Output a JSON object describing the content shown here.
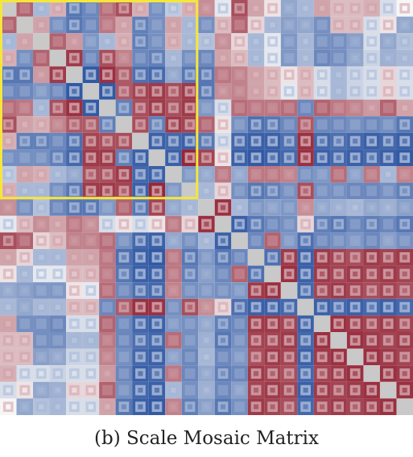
{
  "caption": "(b) Scale Mosaic Matrix",
  "chart_data": {
    "type": "heatmap",
    "title": "",
    "xlabel": "",
    "ylabel": "",
    "grid": false,
    "legend": "none",
    "colorscale": {
      "negative": "#1f4a9c",
      "neutral": "#f6f6f6",
      "positive": "#8c1326",
      "diagonal": "#c9c9c9",
      "range": [
        -1,
        1
      ]
    },
    "highlight_color": "#f5e63c",
    "highlight_blocks": [
      {
        "rows": [
          0,
          11
        ],
        "cols": [
          0,
          11
        ]
      }
    ],
    "rows": [
      [
        1.0,
        0.6,
        -0.3,
        0.25,
        -0.7,
        -0.6,
        0.55,
        0.7,
        0.25,
        -0.55,
        -0.2,
        0.25,
        0.4,
        -0.05,
        0.7,
        0.3,
        0.05,
        -0.4,
        -0.3,
        0.3,
        0.2,
        0.2,
        0.25,
        -0.1,
        0.0
      ],
      [
        0.6,
        1.0,
        0.3,
        -0.55,
        -0.7,
        -0.6,
        0.5,
        0.3,
        -0.65,
        -0.55,
        0.3,
        -0.3,
        -0.55,
        0.2,
        0.6,
        0.1,
        -0.3,
        -0.45,
        -0.4,
        -0.55,
        0.2,
        0.2,
        -0.1,
        0.05,
        -0.4
      ],
      [
        -0.3,
        0.3,
        1.0,
        0.6,
        0.35,
        -0.5,
        -0.3,
        0.25,
        -0.65,
        -0.55,
        0.25,
        -0.3,
        -0.25,
        0.4,
        0.1,
        -0.3,
        -0.05,
        -0.5,
        -0.3,
        -0.55,
        -0.55,
        -0.45,
        -0.1,
        -0.4,
        -0.25
      ],
      [
        0.25,
        -0.55,
        0.6,
        1.0,
        0.8,
        -0.6,
        0.7,
        0.45,
        -0.6,
        -0.65,
        -0.3,
        -0.55,
        -0.6,
        0.3,
        0.2,
        -0.3,
        -0.05,
        -0.5,
        -0.3,
        -0.6,
        -0.55,
        -0.4,
        -0.15,
        -0.35,
        -0.3
      ],
      [
        -0.7,
        -0.7,
        0.35,
        0.8,
        1.0,
        -0.9,
        0.85,
        0.65,
        -0.75,
        -0.8,
        -0.4,
        -0.7,
        -0.7,
        0.5,
        0.45,
        0.3,
        0.2,
        0.05,
        0.2,
        -0.1,
        -0.3,
        -0.15,
        -0.1,
        0.1,
        -0.1
      ],
      [
        -0.6,
        -0.6,
        -0.5,
        -0.6,
        -0.9,
        1.0,
        -0.9,
        0.65,
        0.75,
        0.8,
        0.7,
        0.8,
        -0.7,
        0.4,
        0.45,
        0.3,
        0.2,
        -0.05,
        0.2,
        -0.1,
        -0.3,
        -0.15,
        -0.1,
        0.1,
        -0.1
      ],
      [
        0.55,
        0.5,
        -0.3,
        0.7,
        0.85,
        -0.9,
        1.0,
        -0.65,
        0.7,
        0.8,
        0.7,
        0.8,
        -0.5,
        -0.1,
        0.55,
        0.5,
        0.5,
        0.55,
        -0.6,
        0.6,
        0.5,
        0.45,
        0.35,
        0.6,
        0.3
      ],
      [
        0.7,
        0.3,
        0.25,
        0.45,
        0.65,
        0.65,
        -0.65,
        1.0,
        0.7,
        -0.65,
        0.8,
        0.75,
        0.6,
        0.05,
        -0.55,
        -0.75,
        -0.7,
        -0.6,
        0.65,
        -0.6,
        -0.6,
        -0.55,
        -0.6,
        -0.55,
        -0.7
      ],
      [
        0.25,
        -0.65,
        -0.65,
        -0.6,
        -0.75,
        0.75,
        0.7,
        0.7,
        1.0,
        -0.85,
        -0.8,
        -0.85,
        -0.7,
        -0.1,
        -0.8,
        -0.85,
        -0.85,
        -0.75,
        0.85,
        -0.8,
        -0.75,
        -0.8,
        -0.85,
        -0.8,
        -0.85
      ],
      [
        -0.55,
        -0.55,
        -0.55,
        -0.65,
        -0.8,
        0.8,
        0.8,
        -0.65,
        -0.85,
        1.0,
        -0.85,
        0.9,
        0.75,
        0.05,
        -0.85,
        -0.9,
        -0.85,
        -0.8,
        0.85,
        -0.85,
        -0.8,
        -0.85,
        -0.8,
        -0.85,
        -0.9
      ],
      [
        -0.2,
        0.3,
        0.25,
        -0.3,
        -0.4,
        0.7,
        0.7,
        0.8,
        -0.8,
        -0.85,
        1.0,
        -0.5,
        -0.4,
        0.5,
        -0.4,
        0.5,
        0.5,
        0.45,
        -0.55,
        -0.5,
        0.55,
        -0.45,
        0.5,
        -0.3,
        0.45
      ],
      [
        0.25,
        -0.3,
        -0.3,
        -0.55,
        -0.7,
        0.8,
        0.8,
        0.75,
        -0.85,
        0.9,
        -0.5,
        1.0,
        -0.3,
        0.1,
        -0.55,
        -0.7,
        -0.65,
        -0.55,
        0.7,
        -0.55,
        -0.55,
        -0.6,
        -0.6,
        -0.55,
        -0.65
      ],
      [
        0.4,
        -0.55,
        -0.25,
        -0.6,
        -0.7,
        -0.7,
        -0.5,
        0.6,
        -0.7,
        0.75,
        -0.4,
        -0.3,
        1.0,
        0.85,
        -0.3,
        -0.5,
        -0.45,
        -0.5,
        0.4,
        -0.4,
        -0.35,
        -0.3,
        -0.4,
        -0.35,
        -0.45
      ],
      [
        -0.05,
        0.2,
        0.4,
        0.3,
        0.5,
        0.4,
        -0.1,
        0.05,
        -0.1,
        0.05,
        0.5,
        0.1,
        0.85,
        1.0,
        -0.85,
        -0.7,
        -0.6,
        -0.55,
        0.1,
        -0.65,
        -0.7,
        -0.6,
        -0.65,
        -0.6,
        -0.7
      ],
      [
        0.7,
        0.6,
        0.1,
        0.2,
        0.45,
        0.45,
        0.55,
        -0.55,
        -0.8,
        -0.85,
        -0.4,
        -0.55,
        -0.3,
        -0.85,
        1.0,
        -0.6,
        0.6,
        -0.5,
        -0.75,
        -0.6,
        -0.55,
        -0.5,
        -0.6,
        -0.45,
        -0.55
      ],
      [
        0.3,
        0.1,
        -0.3,
        -0.3,
        0.3,
        0.3,
        0.5,
        -0.75,
        -0.85,
        -0.9,
        0.5,
        -0.7,
        -0.5,
        -0.7,
        -0.6,
        1.0,
        -0.75,
        0.8,
        -0.85,
        0.8,
        0.75,
        0.7,
        0.8,
        0.75,
        0.8
      ],
      [
        0.05,
        -0.3,
        -0.05,
        -0.05,
        0.2,
        0.2,
        0.5,
        -0.7,
        -0.85,
        -0.85,
        0.5,
        -0.65,
        -0.45,
        -0.6,
        0.6,
        -0.75,
        1.0,
        0.85,
        -0.85,
        0.8,
        0.75,
        0.8,
        0.75,
        0.8,
        0.75
      ],
      [
        -0.4,
        -0.45,
        -0.5,
        -0.5,
        0.05,
        -0.05,
        0.55,
        -0.6,
        -0.75,
        -0.8,
        0.45,
        -0.55,
        -0.5,
        -0.55,
        -0.5,
        0.8,
        0.85,
        1.0,
        -0.8,
        0.75,
        0.8,
        0.75,
        0.7,
        0.75,
        0.7
      ],
      [
        -0.3,
        -0.4,
        -0.3,
        -0.3,
        0.2,
        0.2,
        -0.6,
        0.65,
        0.85,
        0.85,
        -0.55,
        0.7,
        0.4,
        0.1,
        -0.75,
        -0.85,
        -0.85,
        -0.8,
        1.0,
        -0.85,
        -0.8,
        -0.85,
        -0.8,
        -0.85,
        -0.8
      ],
      [
        0.3,
        -0.55,
        -0.55,
        -0.6,
        -0.1,
        -0.1,
        0.6,
        -0.6,
        -0.8,
        -0.85,
        -0.5,
        -0.55,
        -0.4,
        -0.65,
        -0.6,
        0.8,
        0.8,
        0.75,
        -0.85,
        1.0,
        0.85,
        0.8,
        0.75,
        0.8,
        0.75
      ],
      [
        0.2,
        0.2,
        -0.55,
        -0.55,
        -0.3,
        -0.3,
        0.5,
        -0.6,
        -0.75,
        -0.8,
        0.55,
        -0.55,
        -0.35,
        -0.7,
        -0.55,
        0.75,
        0.75,
        0.8,
        -0.8,
        0.85,
        1.0,
        0.85,
        0.8,
        0.75,
        0.8
      ],
      [
        0.2,
        0.2,
        -0.45,
        -0.4,
        -0.15,
        -0.15,
        0.45,
        -0.55,
        -0.8,
        -0.85,
        -0.45,
        -0.6,
        -0.3,
        -0.6,
        -0.5,
        0.7,
        0.8,
        0.75,
        -0.85,
        0.8,
        0.85,
        1.0,
        0.85,
        0.8,
        0.75
      ],
      [
        0.25,
        -0.1,
        -0.1,
        -0.15,
        -0.1,
        -0.1,
        0.35,
        -0.6,
        -0.85,
        -0.8,
        0.5,
        -0.6,
        -0.4,
        -0.65,
        -0.6,
        0.8,
        0.75,
        0.7,
        -0.8,
        0.75,
        0.8,
        0.85,
        1.0,
        0.85,
        0.8
      ],
      [
        -0.1,
        0.05,
        -0.4,
        -0.35,
        0.1,
        0.1,
        0.6,
        -0.55,
        -0.8,
        -0.85,
        -0.3,
        -0.55,
        -0.35,
        -0.6,
        -0.45,
        0.75,
        0.8,
        0.75,
        -0.85,
        0.8,
        0.75,
        0.8,
        0.85,
        1.0,
        0.85
      ],
      [
        0.0,
        -0.4,
        -0.25,
        -0.3,
        -0.1,
        -0.1,
        0.3,
        -0.7,
        -0.85,
        -0.9,
        0.45,
        -0.65,
        -0.45,
        -0.7,
        -0.55,
        0.8,
        0.75,
        0.7,
        -0.8,
        0.75,
        0.8,
        0.75,
        0.8,
        0.85,
        1.0
      ]
    ]
  }
}
